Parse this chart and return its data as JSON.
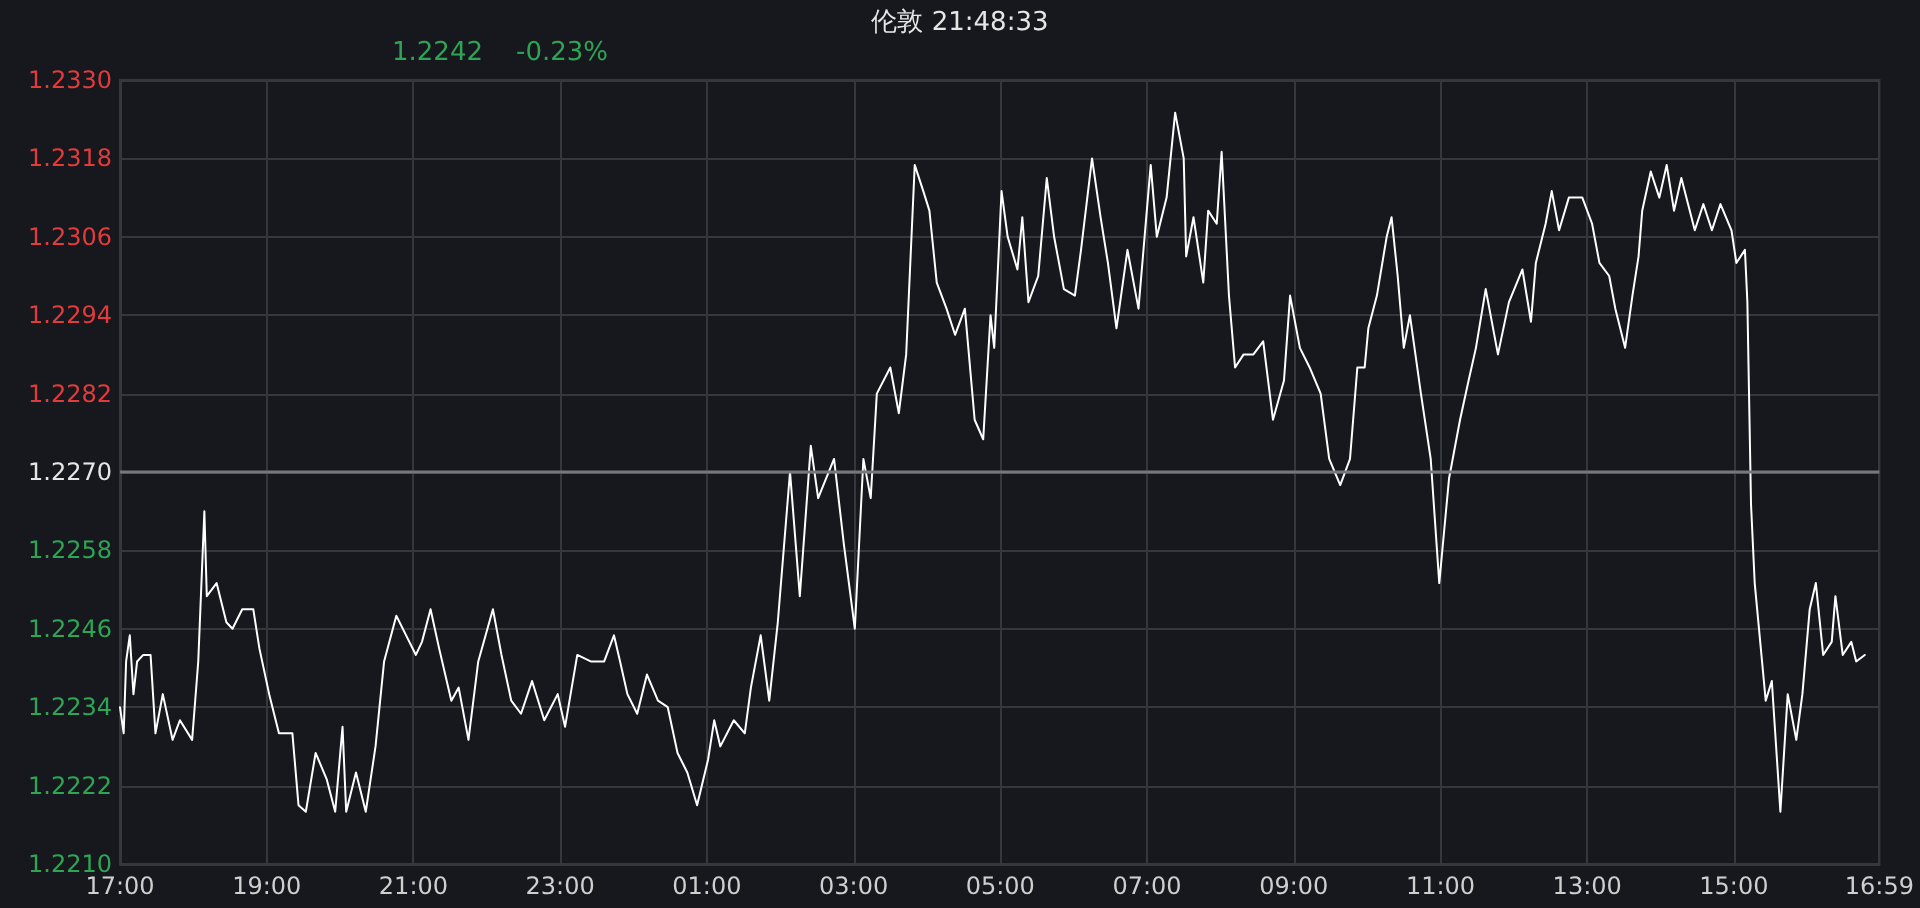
{
  "chart_data": {
    "type": "line",
    "title": "伦敦 21:48:33",
    "annotations": [
      "1.2242",
      "-0.23%"
    ],
    "x": [
      "--01-04T17:00",
      "--01-04T17:03",
      "--01-04T17:05",
      "--01-04T17:08",
      "--01-04T17:11",
      "--01-04T17:14",
      "--01-04T17:19",
      "--01-04T17:25",
      "--01-04T17:29",
      "--01-04T17:35",
      "--01-04T17:43",
      "--01-04T17:49",
      "--01-04T17:59",
      "--01-04T18:04",
      "--01-04T18:09",
      "--01-04T18:11",
      "--01-04T18:19",
      "--01-04T18:27",
      "--01-04T18:32",
      "--01-04T18:40",
      "--01-04T18:49",
      "--01-04T18:54",
      "--01-04T19:02",
      "--01-04T19:10",
      "--01-04T19:21",
      "--01-04T19:26",
      "--01-04T19:32",
      "--01-04T19:40",
      "--01-04T19:49",
      "--01-04T19:56",
      "--01-04T20:02",
      "--01-04T20:05",
      "--01-04T20:13",
      "--01-04T20:21",
      "--01-04T20:29",
      "--01-04T20:36",
      "--01-04T20:46",
      "--01-04T20:54",
      "--01-04T21:02",
      "--01-04T21:07",
      "--01-04T21:14",
      "--01-04T21:21",
      "--01-04T21:31",
      "--01-04T21:37",
      "--01-04T21:45",
      "--01-04T21:53",
      "--01-04T22:05",
      "--01-04T22:12",
      "--01-04T22:20",
      "--01-04T22:28",
      "--01-04T22:37",
      "--01-04T22:47",
      "--01-04T22:58",
      "--01-04T23:04",
      "--01-04T23:14",
      "--01-04T23:25",
      "--01-04T23:36",
      "--01-04T23:44",
      "--01-04T23:49",
      "--01-04T23:55",
      "--01-05T00:03",
      "--01-05T00:11",
      "--01-05T00:20",
      "--01-05T00:28",
      "--01-05T00:36",
      "--01-05T00:44",
      "--01-05T00:52",
      "--01-05T01:01",
      "--01-05T01:06",
      "--01-05T01:11",
      "--01-05T01:22",
      "--01-05T01:31",
      "--01-05T01:36",
      "--01-05T01:44",
      "--01-05T01:51",
      "--01-05T01:58",
      "--01-05T02:08",
      "--01-05T02:16",
      "--01-05T02:25",
      "--01-05T02:31",
      "--01-05T02:44",
      "--01-05T02:52",
      "--01-05T03:01",
      "--01-05T03:08",
      "--01-05T03:14",
      "--01-05T03:19",
      "--01-05T03:30",
      "--01-05T03:37",
      "--01-05T03:43",
      "--01-05T03:50",
      "--01-05T03:57",
      "--01-05T04:02",
      "--01-05T04:08",
      "--01-05T04:16",
      "--01-05T04:23",
      "--01-05T04:31",
      "--01-05T04:39",
      "--01-05T04:46",
      "--01-05T04:52",
      "--01-05T04:55",
      "--01-05T05:01",
      "--01-05T05:06",
      "--01-05T05:14",
      "--01-05T05:18",
      "--01-05T05:23",
      "--01-05T05:31",
      "--01-05T05:38",
      "--01-05T05:44",
      "--01-05T05:52",
      "--01-05T06:01",
      "--01-05T06:06",
      "--01-05T06:15",
      "--01-05T06:22",
      "--01-05T06:28",
      "--01-05T06:35",
      "--01-05T06:44",
      "--01-05T06:53",
      "--01-05T07:03",
      "--01-05T07:08",
      "--01-05T07:16",
      "--01-05T07:23",
      "--01-05T07:30",
      "--01-05T07:32",
      "--01-05T07:38",
      "--01-05T07:46",
      "--01-05T07:50",
      "--01-05T07:57",
      "--01-05T08:01",
      "--01-05T08:07",
      "--01-05T08:12",
      "--01-05T08:19",
      "--01-05T08:27",
      "--01-05T08:35",
      "--01-05T08:43",
      "--01-05T08:52",
      "--01-05T08:57",
      "--01-05T09:05",
      "--01-05T09:13",
      "--01-05T09:22",
      "--01-05T09:29",
      "--01-05T09:38",
      "--01-05T09:46",
      "--01-05T09:52",
      "--01-05T09:58",
      "--01-05T10:01",
      "--01-05T10:08",
      "--01-05T10:16",
      "--01-05T10:20",
      "--01-05T10:25",
      "--01-05T10:30",
      "--01-05T10:35",
      "--01-05T10:44",
      "--01-05T10:52",
      "--01-05T10:59",
      "--01-05T11:07",
      "--01-05T11:16",
      "--01-05T11:23",
      "--01-05T11:29",
      "--01-05T11:37",
      "--01-05T11:47",
      "--01-05T11:56",
      "--01-05T12:07",
      "--01-05T12:14",
      "--01-05T12:18",
      "--01-05T12:26",
      "--01-05T12:31",
      "--01-05T12:37",
      "--01-05T12:45",
      "--01-05T12:56",
      "--01-05T13:04",
      "--01-05T13:10",
      "--01-05T13:18",
      "--01-05T13:23",
      "--01-05T13:31",
      "--01-05T13:37",
      "--01-05T13:42",
      "--01-05T13:45",
      "--01-05T13:52",
      "--01-05T13:59",
      "--01-05T14:05",
      "--01-05T14:11",
      "--01-05T14:17",
      "--01-05T14:28",
      "--01-05T14:35",
      "--01-05T14:42",
      "--01-05T14:49",
      "--01-05T14:58",
      "--01-05T15:02",
      "--01-05T15:09",
      "--01-05T15:11",
      "--01-05T15:14",
      "--01-05T15:17",
      "--01-05T15:23",
      "--01-05T15:26",
      "--01-05T15:31",
      "--01-05T15:38",
      "--01-05T15:44",
      "--01-05T15:51",
      "--01-05T15:56",
      "--01-05T16:02",
      "--01-05T16:07",
      "--01-05T16:13",
      "--01-05T16:20",
      "--01-05T16:23",
      "--01-05T16:29",
      "--01-05T16:36",
      "--01-05T16:40",
      "--01-05T16:47"
    ],
    "series": [
      {
        "color": "#ffffff",
        "values": [
          1.2234,
          1.223,
          1.2241,
          1.2245,
          1.2236,
          1.2241,
          1.2242,
          1.2242,
          1.223,
          1.2236,
          1.2229,
          1.2232,
          1.2229,
          1.2241,
          1.2264,
          1.2251,
          1.2253,
          1.2247,
          1.2246,
          1.2249,
          1.2249,
          1.2243,
          1.2236,
          1.223,
          1.223,
          1.2219,
          1.2218,
          1.2227,
          1.2223,
          1.2218,
          1.2231,
          1.2218,
          1.2224,
          1.2218,
          1.2228,
          1.2241,
          1.2248,
          1.2245,
          1.2242,
          1.2244,
          1.2249,
          1.2243,
          1.2235,
          1.2237,
          1.2229,
          1.2241,
          1.2249,
          1.2242,
          1.2235,
          1.2233,
          1.2238,
          1.2232,
          1.2236,
          1.2231,
          1.2242,
          1.2241,
          1.2241,
          1.2245,
          1.2241,
          1.2236,
          1.2233,
          1.2239,
          1.2235,
          1.2234,
          1.2227,
          1.2224,
          1.2219,
          1.2226,
          1.2232,
          1.2228,
          1.2232,
          1.223,
          1.2237,
          1.2245,
          1.2235,
          1.2247,
          1.227,
          1.2251,
          1.2274,
          1.2266,
          1.2272,
          1.2259,
          1.2246,
          1.2272,
          1.2266,
          1.2282,
          1.2286,
          1.2279,
          1.2288,
          1.2317,
          1.2313,
          1.231,
          1.2299,
          1.2295,
          1.2291,
          1.2295,
          1.2278,
          1.2275,
          1.2294,
          1.2289,
          1.2313,
          1.2306,
          1.2301,
          1.2309,
          1.2296,
          1.23,
          1.2315,
          1.2306,
          1.2298,
          1.2297,
          1.2304,
          1.2318,
          1.2309,
          1.2302,
          1.2292,
          1.2304,
          1.2295,
          1.2317,
          1.2306,
          1.2312,
          1.2325,
          1.2318,
          1.2303,
          1.2309,
          1.2299,
          1.231,
          1.2308,
          1.2319,
          1.2297,
          1.2286,
          1.2288,
          1.2288,
          1.229,
          1.2278,
          1.2284,
          1.2297,
          1.2289,
          1.2286,
          1.2282,
          1.2272,
          1.2268,
          1.2272,
          1.2286,
          1.2286,
          1.2292,
          1.2297,
          1.2306,
          1.2309,
          1.23,
          1.2289,
          1.2294,
          1.2282,
          1.2272,
          1.2253,
          1.2269,
          1.2278,
          1.2284,
          1.2289,
          1.2298,
          1.2288,
          1.2296,
          1.2301,
          1.2293,
          1.2302,
          1.2308,
          1.2313,
          1.2307,
          1.2312,
          1.2312,
          1.2308,
          1.2302,
          1.23,
          1.2295,
          1.2289,
          1.2297,
          1.2303,
          1.231,
          1.2316,
          1.2312,
          1.2317,
          1.231,
          1.2315,
          1.2307,
          1.2311,
          1.2307,
          1.2311,
          1.2307,
          1.2302,
          1.2304,
          1.2296,
          1.2265,
          1.2253,
          1.2241,
          1.2235,
          1.2238,
          1.2218,
          1.2236,
          1.2229,
          1.2236,
          1.2249,
          1.2253,
          1.2242,
          1.2244,
          1.2251,
          1.2242,
          1.2244,
          1.2241,
          1.2242
        ]
      }
    ],
    "xlim": [
      "--01-04T17:00",
      "--01-05T16:59"
    ],
    "xticks": [
      {
        "value": "--01-04T17:00",
        "label": "17:00"
      },
      {
        "value": "--01-04T19:00",
        "label": "19:00"
      },
      {
        "value": "--01-04T21:00",
        "label": "21:00"
      },
      {
        "value": "--01-04T23:00",
        "label": "23:00"
      },
      {
        "value": "--01-05T01:00",
        "label": "01:00"
      },
      {
        "value": "--01-05T03:00",
        "label": "03:00"
      },
      {
        "value": "--01-05T05:00",
        "label": "05:00"
      },
      {
        "value": "--01-05T07:00",
        "label": "07:00"
      },
      {
        "value": "--01-05T09:00",
        "label": "09:00"
      },
      {
        "value": "--01-05T11:00",
        "label": "11:00"
      },
      {
        "value": "--01-05T13:00",
        "label": "13:00"
      },
      {
        "value": "--01-05T15:00",
        "label": "15:00"
      },
      {
        "value": "--01-05T16:59",
        "label": "16:59"
      }
    ],
    "ylim": [
      1.221,
      1.233
    ],
    "yticks": [
      {
        "value": 1.221,
        "label": "1.2210"
      },
      1.2222,
      1.2234,
      1.2246,
      1.2258,
      {
        "value": 1.227,
        "label": "1.2270"
      },
      1.2282,
      1.2294,
      1.2306,
      1.2318,
      {
        "value": 1.233,
        "label": "1.2330"
      }
    ],
    "ref_lines": [
      {
        "axis": "y",
        "value": 1.227,
        "color": "#75787d"
      }
    ],
    "grid": true,
    "marker": "none",
    "line_style": "solid"
  }
}
